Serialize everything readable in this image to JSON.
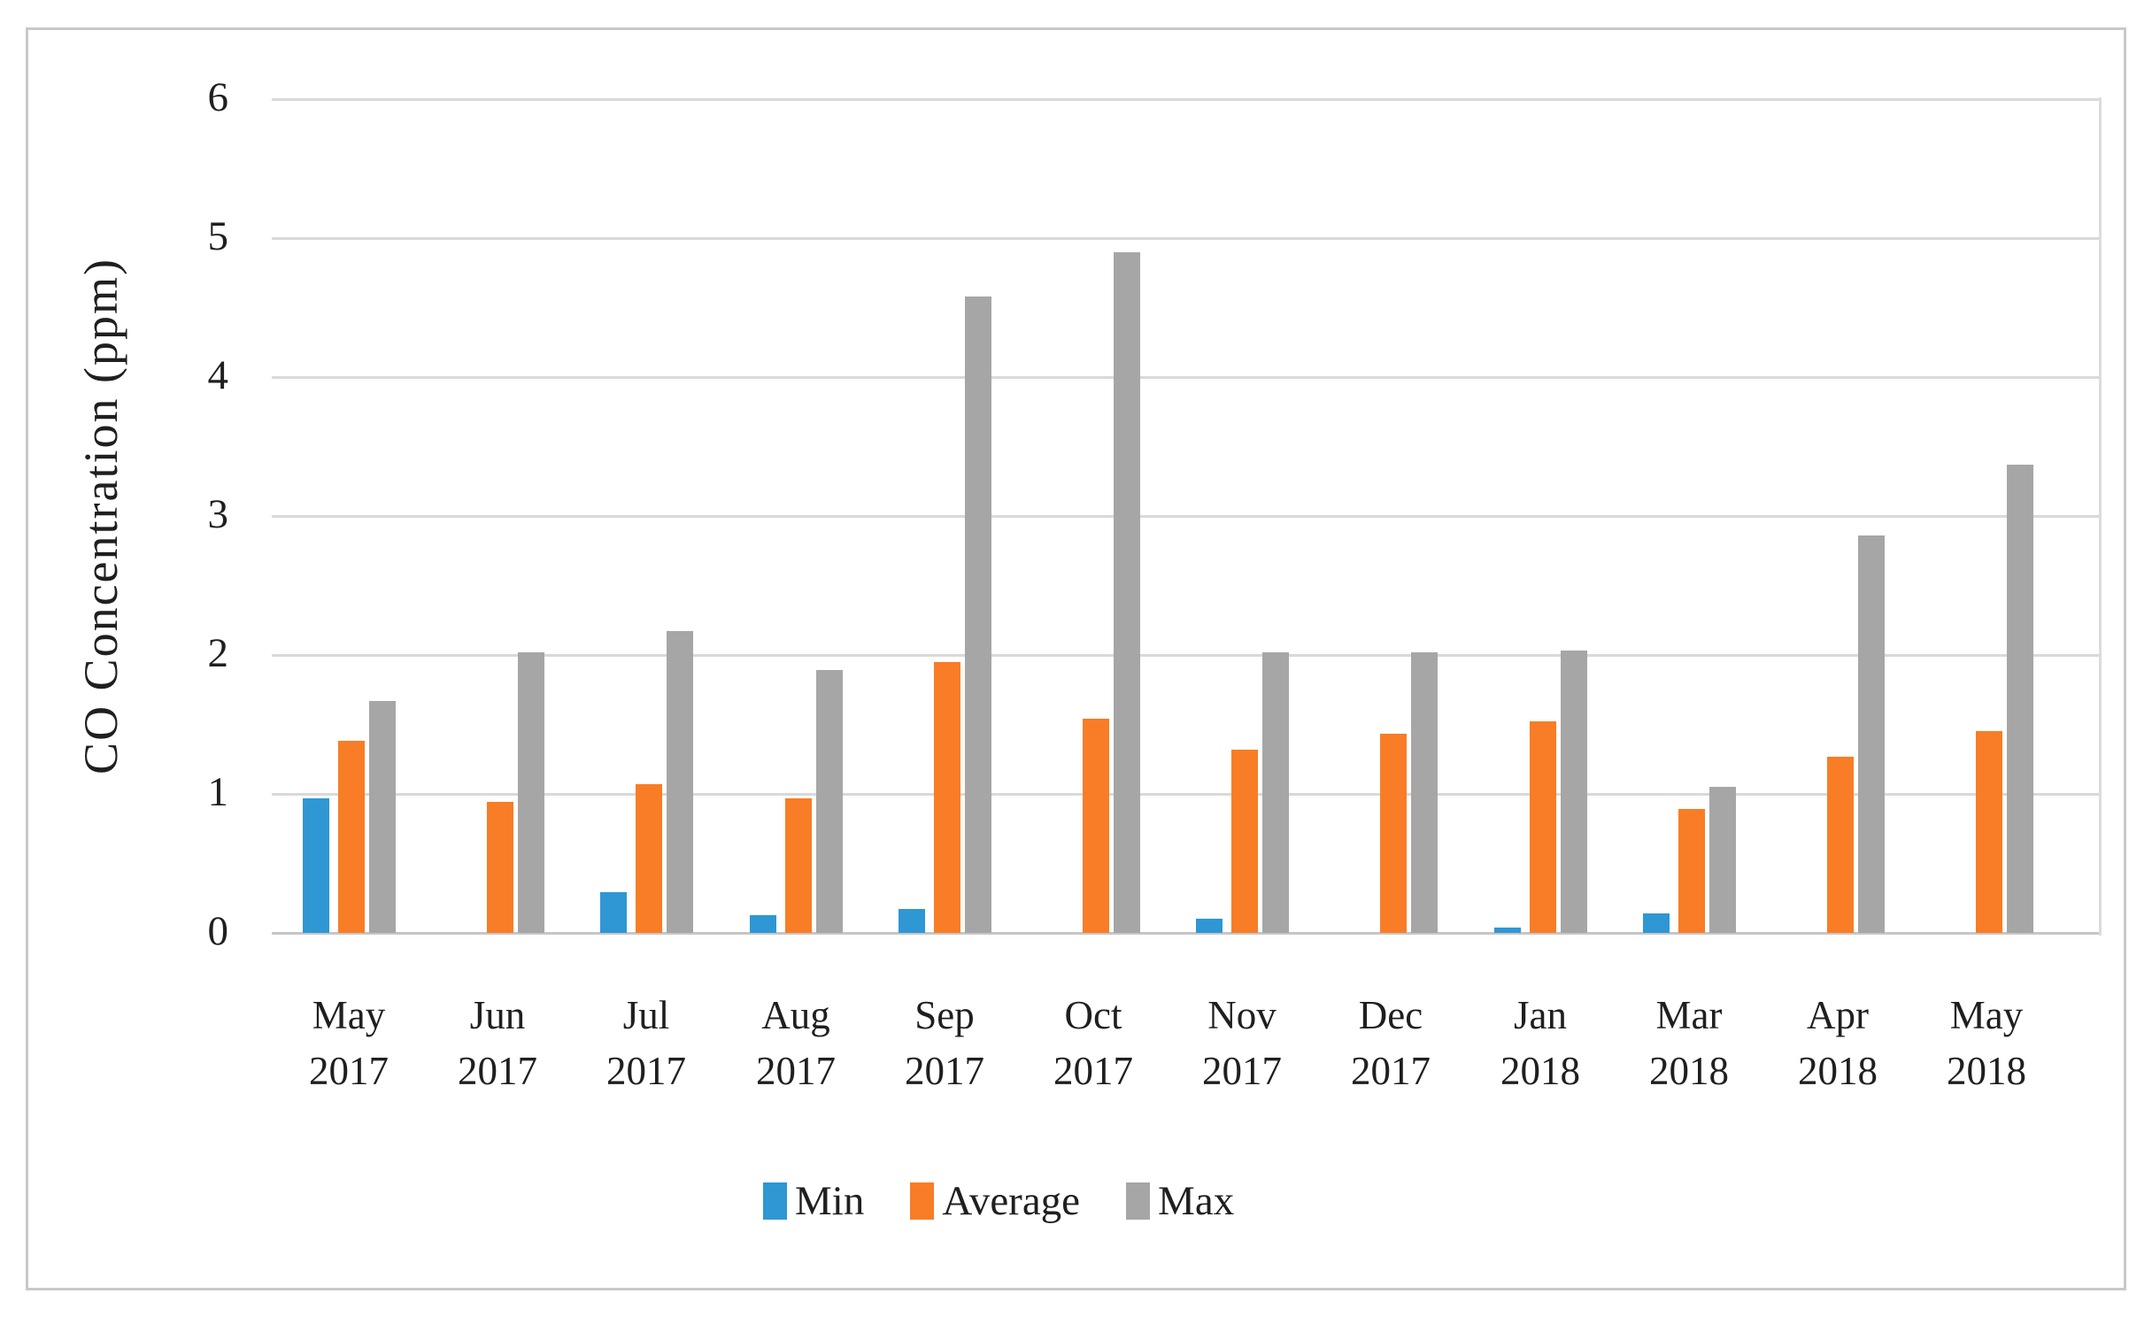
{
  "chart_data": {
    "type": "bar",
    "title": "",
    "xlabel": "",
    "ylabel": "CO Concentration (ppm)",
    "ylim": [
      0,
      6
    ],
    "yticks": [
      "0",
      "1",
      "2",
      "3",
      "4",
      "5",
      "6"
    ],
    "grid": "horizontal",
    "legend_position": "bottom",
    "categories": [
      {
        "month": "May",
        "year": "2017"
      },
      {
        "month": "Jun",
        "year": "2017"
      },
      {
        "month": "Jul",
        "year": "2017"
      },
      {
        "month": "Aug",
        "year": "2017"
      },
      {
        "month": "Sep",
        "year": "2017"
      },
      {
        "month": "Oct",
        "year": "2017"
      },
      {
        "month": "Nov",
        "year": "2017"
      },
      {
        "month": "Dec",
        "year": "2017"
      },
      {
        "month": "Jan",
        "year": "2018"
      },
      {
        "month": "Mar",
        "year": "2018"
      },
      {
        "month": "Apr",
        "year": "2018"
      },
      {
        "month": "May",
        "year": "2018"
      }
    ],
    "series": [
      {
        "name": "Min",
        "color": "#2e97d4",
        "values": [
          0.97,
          0,
          0.29,
          0.13,
          0.17,
          0,
          0.1,
          0,
          0.04,
          0.14,
          0,
          0
        ]
      },
      {
        "name": "Average",
        "color": "#f87d26",
        "values": [
          1.38,
          0.94,
          1.07,
          0.97,
          1.95,
          1.54,
          1.32,
          1.43,
          1.52,
          0.89,
          1.27,
          1.45
        ]
      },
      {
        "name": "Max",
        "color": "#a6a6a6",
        "values": [
          1.67,
          2.02,
          2.17,
          1.89,
          4.58,
          4.9,
          2.02,
          2.02,
          2.03,
          1.05,
          2.86,
          3.37
        ]
      }
    ]
  },
  "colors": {
    "gridline": "#d9d9d9",
    "baseline": "#c6c6c6",
    "frame": "#c9c9c9",
    "text": "#1f1f1f"
  }
}
